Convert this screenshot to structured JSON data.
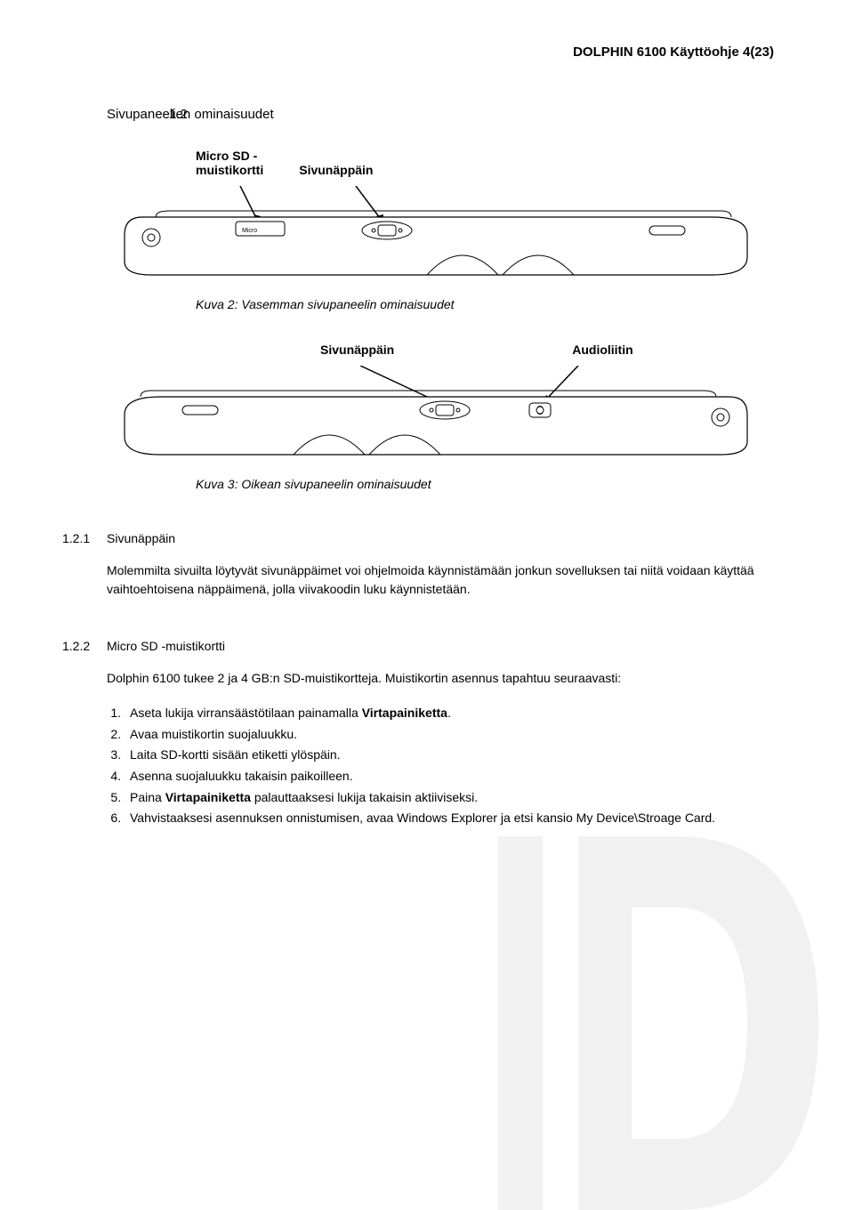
{
  "header": {
    "title": "DOLPHIN 6100 Käyttöohje 4(23)"
  },
  "section": {
    "number": "1.2",
    "title": "Sivupaneelien ominaisuudet"
  },
  "figure1": {
    "label_left": "Micro SD -",
    "label_left2": "muistikortti",
    "label_right": "Sivunäppäin",
    "caption": "Kuva 2: Vasemman sivupaneelin ominaisuudet"
  },
  "figure2": {
    "label_left": "Sivunäppäin",
    "label_right": "Audioliitin",
    "caption": "Kuva 3: Oikean sivupaneelin ominaisuudet"
  },
  "sub1": {
    "number": "1.2.1",
    "title": "Sivunäppäin",
    "body": "Molemmilta sivuilta löytyvät sivunäppäimet voi ohjelmoida käynnistämään jonkun sovelluksen tai niitä voidaan käyttää vaihtoehtoisena näppäimenä, jolla viivakoodin luku käynnistetään."
  },
  "sub2": {
    "number": "1.2.2",
    "title": "Micro SD -muistikortti",
    "intro": "Dolphin 6100 tukee 2 ja 4 GB:n SD-muistikortteja. Muistikortin asennus tapahtuu seuraavasti:",
    "steps": [
      {
        "pre": "Aseta lukija virransäästötilaan painamalla ",
        "bold": "Virtapainiketta",
        "post": "."
      },
      {
        "pre": "Avaa muistikortin suojaluukku.",
        "bold": "",
        "post": ""
      },
      {
        "pre": "Laita SD-kortti sisään etiketti ylöspäin.",
        "bold": "",
        "post": ""
      },
      {
        "pre": "Asenna suojaluukku takaisin paikoilleen.",
        "bold": "",
        "post": ""
      },
      {
        "pre": "Paina ",
        "bold": "Virtapainiketta",
        "post": " palauttaaksesi lukija takaisin aktiiviseksi."
      },
      {
        "pre": "Vahvistaaksesi asennuksen onnistumisen, avaa Windows Explorer ja etsi kansio My Device\\Stroage Card.",
        "bold": "",
        "post": ""
      }
    ]
  },
  "colors": {
    "text": "#000000",
    "background": "#ffffff",
    "watermark": "#d9d9d9"
  }
}
